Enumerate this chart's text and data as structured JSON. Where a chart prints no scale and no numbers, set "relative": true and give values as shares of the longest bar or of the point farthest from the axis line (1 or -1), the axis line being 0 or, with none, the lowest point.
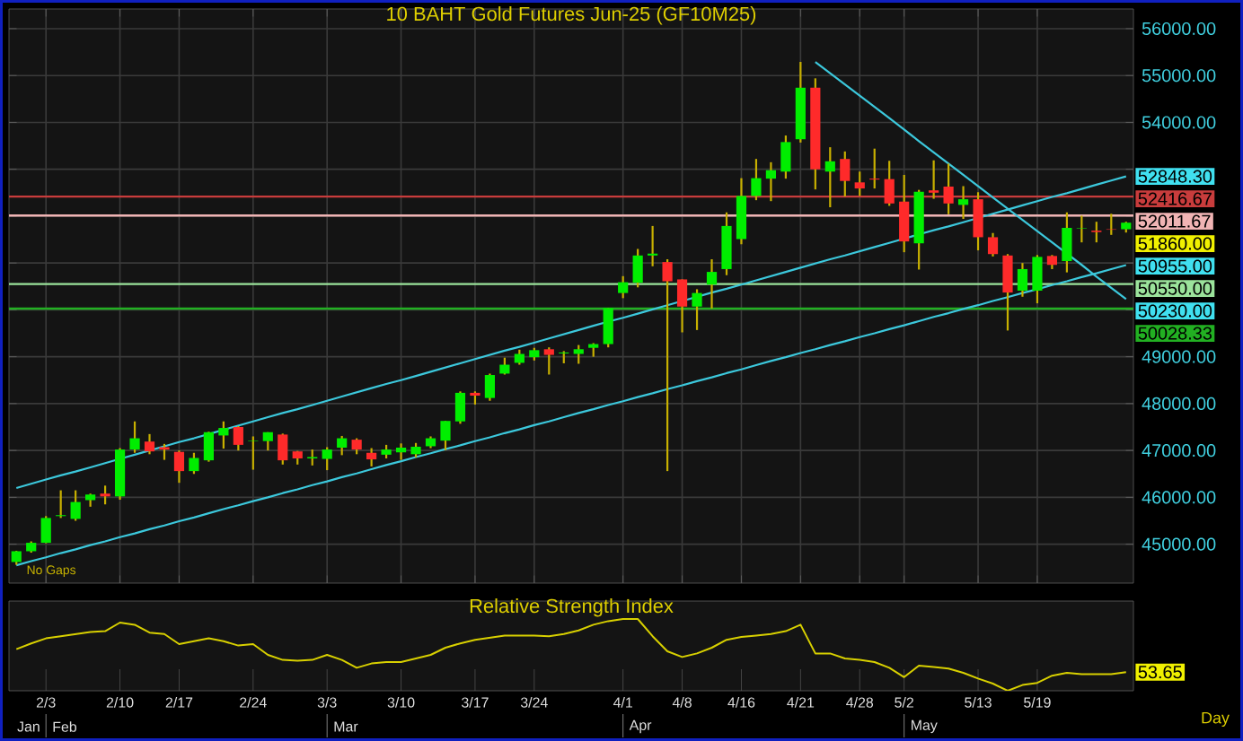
{
  "chart_data": [
    {
      "type": "candlestick",
      "title": "10  BAHT  Gold  Futures  Jun-25  (GF10M25)",
      "categories": [
        null,
        null,
        null,
        null,
        null,
        null,
        null,
        null,
        null,
        null,
        null,
        null,
        null,
        null,
        null,
        null,
        null,
        null,
        null,
        null,
        null,
        null,
        null,
        null,
        null,
        null,
        null,
        null,
        null,
        null,
        null,
        null,
        null,
        null,
        null,
        null,
        null,
        null,
        null,
        null,
        null,
        null,
        null,
        null,
        null,
        null,
        null,
        null,
        null,
        null,
        null,
        null,
        null,
        null,
        null,
        null,
        null,
        null,
        null,
        null,
        null,
        null,
        null,
        null,
        null,
        null,
        null,
        null,
        null,
        null,
        null,
        null,
        null,
        null,
        null,
        null
      ],
      "ohlc": [
        [
          44620,
          44860,
          44560,
          44850
        ],
        [
          44850,
          45060,
          44820,
          45030
        ],
        [
          45030,
          45600,
          45020,
          45560
        ],
        [
          45600,
          46150,
          45560,
          45620
        ],
        [
          45540,
          46150,
          45500,
          45900
        ],
        [
          45940,
          46080,
          45800,
          46060
        ],
        [
          46080,
          46250,
          45850,
          46020
        ],
        [
          46020,
          47050,
          45950,
          47020
        ],
        [
          47020,
          47620,
          46950,
          47260
        ],
        [
          47190,
          47350,
          46920,
          46980
        ],
        [
          47070,
          47140,
          46800,
          47020
        ],
        [
          46970,
          47000,
          46310,
          46560
        ],
        [
          46560,
          46950,
          46500,
          46840
        ],
        [
          46790,
          47400,
          46760,
          47390
        ],
        [
          47320,
          47620,
          47040,
          47480
        ],
        [
          47500,
          47520,
          47000,
          47120
        ],
        [
          47200,
          47300,
          46590,
          47210
        ],
        [
          47200,
          47390,
          47000,
          47390
        ],
        [
          47340,
          47360,
          46700,
          46790
        ],
        [
          46980,
          46990,
          46700,
          46830
        ],
        [
          46830,
          47020,
          46680,
          46860
        ],
        [
          46820,
          47070,
          46580,
          47020
        ],
        [
          47060,
          47310,
          46900,
          47260
        ],
        [
          47230,
          47260,
          46920,
          47020
        ],
        [
          46950,
          47050,
          46660,
          46810
        ],
        [
          46910,
          47120,
          46830,
          47020
        ],
        [
          46960,
          47150,
          46800,
          47060
        ],
        [
          46920,
          47160,
          46850,
          47080
        ],
        [
          47090,
          47300,
          47050,
          47260
        ],
        [
          47210,
          47630,
          47010,
          47630
        ],
        [
          47620,
          48260,
          47570,
          48230
        ],
        [
          48230,
          48260,
          47980,
          48170
        ],
        [
          48120,
          48640,
          48060,
          48610
        ],
        [
          48640,
          48980,
          48620,
          48830
        ],
        [
          48870,
          49150,
          48830,
          49060
        ],
        [
          48990,
          49190,
          48920,
          49140
        ],
        [
          49160,
          49200,
          48620,
          49040
        ],
        [
          49070,
          49120,
          48860,
          49090
        ],
        [
          49060,
          49250,
          48850,
          49160
        ],
        [
          49190,
          49290,
          49000,
          49270
        ],
        [
          49270,
          50040,
          49200,
          50040
        ],
        [
          50360,
          50720,
          50250,
          50590
        ],
        [
          50580,
          51300,
          50480,
          51160
        ],
        [
          51160,
          51790,
          50930,
          51200
        ],
        [
          51020,
          51080,
          46560,
          50610
        ],
        [
          50650,
          50650,
          49520,
          50070
        ],
        [
          50070,
          50440,
          49570,
          50360
        ],
        [
          50540,
          51080,
          50030,
          50810
        ],
        [
          50870,
          52080,
          50740,
          51790
        ],
        [
          51510,
          52810,
          51400,
          52430
        ],
        [
          52430,
          53220,
          52340,
          52810
        ],
        [
          52800,
          53150,
          52320,
          52980
        ],
        [
          52950,
          53720,
          52800,
          53580
        ],
        [
          53640,
          55290,
          53570,
          54740
        ],
        [
          54740,
          54940,
          52570,
          53000
        ],
        [
          52950,
          53470,
          52190,
          53170
        ],
        [
          53220,
          53380,
          52420,
          52750
        ],
        [
          52720,
          52950,
          52430,
          52590
        ],
        [
          52800,
          53440,
          52590,
          52780
        ],
        [
          52790,
          53180,
          52220,
          52270
        ],
        [
          52310,
          52880,
          51230,
          51460
        ],
        [
          51420,
          52560,
          50860,
          52520
        ],
        [
          52550,
          53190,
          52370,
          52500
        ],
        [
          52630,
          53120,
          52040,
          52270
        ],
        [
          52240,
          52640,
          51940,
          52360
        ],
        [
          52360,
          52510,
          51270,
          51550
        ],
        [
          51550,
          51640,
          51140,
          51190
        ],
        [
          51160,
          51190,
          49560,
          50370
        ],
        [
          50410,
          51000,
          50280,
          50870
        ],
        [
          50410,
          51170,
          50140,
          51130
        ],
        [
          51150,
          51170,
          50870,
          50960
        ],
        [
          51040,
          52080,
          50800,
          51750
        ],
        [
          51740,
          52010,
          51440,
          51750
        ],
        [
          51690,
          51880,
          51440,
          51660
        ],
        [
          51720,
          52050,
          51600,
          51710
        ],
        [
          51720,
          51880,
          51650,
          51860
        ]
      ],
      "value_labels": [
        null,
        null,
        null,
        null,
        null,
        null,
        null,
        null,
        null,
        null,
        null,
        null,
        null,
        null,
        null,
        null,
        null,
        null,
        null,
        null,
        null,
        null,
        null,
        null,
        null,
        null,
        null,
        null,
        null,
        null,
        null,
        null,
        null,
        null,
        null,
        null,
        null,
        null,
        null,
        null,
        null,
        null,
        null,
        null,
        null,
        null,
        null,
        null,
        null,
        null,
        null,
        null,
        null,
        null,
        null,
        null,
        null,
        null,
        null,
        null,
        null,
        null,
        null,
        null,
        null,
        null,
        null,
        null,
        null,
        null,
        null,
        null,
        null,
        null,
        null,
        "51860.00"
      ],
      "series": [
        {
          "type": "line",
          "color": "#3cc8dc",
          "values": [
            46200,
            46290,
            46380,
            46470,
            46550,
            46640,
            46730,
            46820,
            46910,
            47000,
            47090,
            47180,
            47260,
            47350,
            47440,
            47530,
            47620,
            47710,
            47800,
            47880,
            47970,
            48060,
            48150,
            48240,
            48330,
            48420,
            48500,
            48590,
            48680,
            48770,
            48860,
            48950,
            49040,
            49130,
            49210,
            49300,
            49390,
            49480,
            49570,
            49660,
            49750,
            49830,
            49920,
            50010,
            50100,
            50190,
            50280,
            50370,
            50450,
            50540,
            50630,
            50720,
            50810,
            50900,
            50990,
            51080,
            51160,
            51250,
            51340,
            51430,
            51520,
            51610,
            51700,
            51780,
            51870,
            51960,
            52050,
            52140,
            52230,
            52320,
            52410,
            52490,
            52580,
            52670,
            52760,
            52848.3
          ],
          "value_labels": [
            null,
            null,
            null,
            null,
            null,
            null,
            null,
            null,
            null,
            null,
            null,
            null,
            null,
            null,
            null,
            null,
            null,
            null,
            null,
            null,
            null,
            null,
            null,
            null,
            null,
            null,
            null,
            null,
            null,
            null,
            null,
            null,
            null,
            null,
            null,
            null,
            null,
            null,
            null,
            null,
            null,
            null,
            null,
            null,
            null,
            null,
            null,
            null,
            null,
            null,
            null,
            null,
            null,
            null,
            null,
            null,
            null,
            null,
            null,
            null,
            null,
            null,
            null,
            null,
            null,
            null,
            null,
            null,
            null,
            null,
            null,
            null,
            null,
            null,
            null,
            "52848.30"
          ]
        },
        {
          "type": "line",
          "color": "#3cc8dc",
          "values": [
            44550,
            44640,
            44720,
            44810,
            44890,
            44980,
            45060,
            45150,
            45230,
            45320,
            45400,
            45490,
            45570,
            45660,
            45750,
            45830,
            45920,
            46000,
            46090,
            46170,
            46260,
            46340,
            46430,
            46510,
            46600,
            46690,
            46770,
            46860,
            46940,
            47030,
            47110,
            47200,
            47280,
            47370,
            47450,
            47540,
            47620,
            47710,
            47800,
            47880,
            47970,
            48050,
            48140,
            48220,
            48310,
            48390,
            48480,
            48560,
            48650,
            48730,
            48820,
            48910,
            48990,
            49080,
            49160,
            49250,
            49330,
            49420,
            49500,
            49590,
            49670,
            49760,
            49850,
            49930,
            50020,
            50100,
            50190,
            50270,
            50360,
            50440,
            50530,
            50610,
            50700,
            50780,
            50870,
            50955
          ],
          "value_labels": [
            null,
            null,
            null,
            null,
            null,
            null,
            null,
            null,
            null,
            null,
            null,
            null,
            null,
            null,
            null,
            null,
            null,
            null,
            null,
            null,
            null,
            null,
            null,
            null,
            null,
            null,
            null,
            null,
            null,
            null,
            null,
            null,
            null,
            null,
            null,
            null,
            null,
            null,
            null,
            null,
            null,
            null,
            null,
            null,
            null,
            null,
            null,
            null,
            null,
            null,
            null,
            null,
            null,
            null,
            null,
            null,
            null,
            null,
            null,
            null,
            null,
            null,
            null,
            null,
            null,
            null,
            null,
            null,
            null,
            null,
            null,
            null,
            null,
            null,
            null,
            "50955.00"
          ]
        },
        {
          "type": "line",
          "color": "#3cc8dc",
          "values": [
            null,
            null,
            null,
            null,
            null,
            null,
            null,
            null,
            null,
            null,
            null,
            null,
            null,
            null,
            null,
            null,
            null,
            null,
            null,
            null,
            null,
            null,
            null,
            null,
            null,
            null,
            null,
            null,
            null,
            null,
            null,
            null,
            null,
            null,
            null,
            null,
            null,
            null,
            null,
            null,
            null,
            null,
            null,
            null,
            null,
            null,
            null,
            null,
            null,
            null,
            null,
            null,
            null,
            null,
            55290,
            55050,
            54810,
            54570,
            54330,
            54090,
            53850,
            53600,
            53360,
            53120,
            52880,
            52640,
            52400,
            52160,
            51920,
            51680,
            51440,
            51200,
            50960,
            50710,
            50470,
            50230
          ],
          "value_labels": [
            null,
            null,
            null,
            null,
            null,
            null,
            null,
            null,
            null,
            null,
            null,
            null,
            null,
            null,
            null,
            null,
            null,
            null,
            null,
            null,
            null,
            null,
            null,
            null,
            null,
            null,
            null,
            null,
            null,
            null,
            null,
            null,
            null,
            null,
            null,
            null,
            null,
            null,
            null,
            null,
            null,
            null,
            null,
            null,
            null,
            null,
            null,
            null,
            null,
            null,
            null,
            null,
            null,
            null,
            null,
            null,
            null,
            null,
            null,
            null,
            null,
            null,
            null,
            null,
            null,
            null,
            null,
            null,
            null,
            null,
            null,
            null,
            null,
            null,
            null,
            "50230.00"
          ]
        }
      ],
      "ref_lines": [
        {
          "axis": "y",
          "value": 52416.67,
          "label": "52416.67",
          "color": "#c83c3c"
        },
        {
          "axis": "y",
          "value": 52011.67,
          "label": "52011.67",
          "color": "#f0b4b4"
        },
        {
          "axis": "y",
          "value": 50550,
          "label": "50550.00",
          "color": "#9be39b"
        },
        {
          "axis": "y",
          "value": 50028.33,
          "label": "50028.33",
          "color": "#22b022"
        }
      ],
      "annotations": [
        "No  Gaps"
      ],
      "ylim": [
        44170,
        56420
      ],
      "yticks": [
        {
          "value": 45000,
          "label": "45000.00"
        },
        {
          "value": 46000,
          "label": "46000.00"
        },
        {
          "value": 47000,
          "label": "47000.00"
        },
        {
          "value": 48000,
          "label": "48000.00"
        },
        {
          "value": 49000,
          "label": "49000.00"
        },
        {
          "value": 50000,
          "label": null
        },
        {
          "value": 51000,
          "label": null
        },
        {
          "value": 52000,
          "label": null
        },
        {
          "value": 53000,
          "label": null
        },
        {
          "value": 54000,
          "label": "54000.00"
        },
        {
          "value": 55000,
          "label": "55000.00"
        },
        {
          "value": 56000,
          "label": "56000.00"
        }
      ],
      "grid": true,
      "tick_labels": "y"
    },
    {
      "type": "line",
      "title": "Relative  Strength  Index",
      "relative": true,
      "color": "#d8d000",
      "categories": [
        null,
        null,
        "2/3",
        null,
        null,
        null,
        null,
        "2/10",
        null,
        null,
        null,
        "2/17",
        null,
        null,
        null,
        null,
        "2/24",
        null,
        null,
        null,
        null,
        "3/3",
        null,
        null,
        null,
        null,
        "3/10",
        null,
        null,
        null,
        null,
        "3/17",
        null,
        null,
        null,
        "3/24",
        null,
        null,
        null,
        null,
        null,
        "4/1",
        null,
        null,
        null,
        "4/8",
        null,
        null,
        null,
        "4/16",
        null,
        null,
        null,
        "4/21",
        null,
        null,
        null,
        "4/28",
        null,
        null,
        "5/2",
        null,
        null,
        null,
        null,
        "5/13",
        null,
        null,
        null,
        "5/19",
        null,
        null,
        null,
        null,
        null,
        null
      ],
      "values": [
        0.58,
        0.66,
        0.73,
        0.76,
        0.79,
        0.82,
        0.83,
        0.95,
        0.92,
        0.81,
        0.79,
        0.65,
        0.69,
        0.73,
        0.69,
        0.63,
        0.65,
        0.5,
        0.43,
        0.42,
        0.43,
        0.5,
        0.43,
        0.32,
        0.38,
        0.4,
        0.4,
        0.45,
        0.5,
        0.6,
        0.66,
        0.71,
        0.74,
        0.77,
        0.77,
        0.77,
        0.76,
        0.79,
        0.84,
        0.92,
        0.97,
        1,
        1,
        0.76,
        0.55,
        0.47,
        0.52,
        0.6,
        0.71,
        0.75,
        0.77,
        0.79,
        0.83,
        0.92,
        0.52,
        0.52,
        0.45,
        0.43,
        0.4,
        0.32,
        0.19,
        0.35,
        0.33,
        0.31,
        0.25,
        0.17,
        0.1,
        0,
        0.08,
        0.11,
        0.21,
        0.25,
        0.23,
        0.23,
        0.23,
        0.26
      ],
      "annotations": [
        "Jan",
        "Feb",
        "Mar",
        "Apr",
        "May",
        "53.65",
        "Day"
      ],
      "tick_labels": "x"
    }
  ]
}
